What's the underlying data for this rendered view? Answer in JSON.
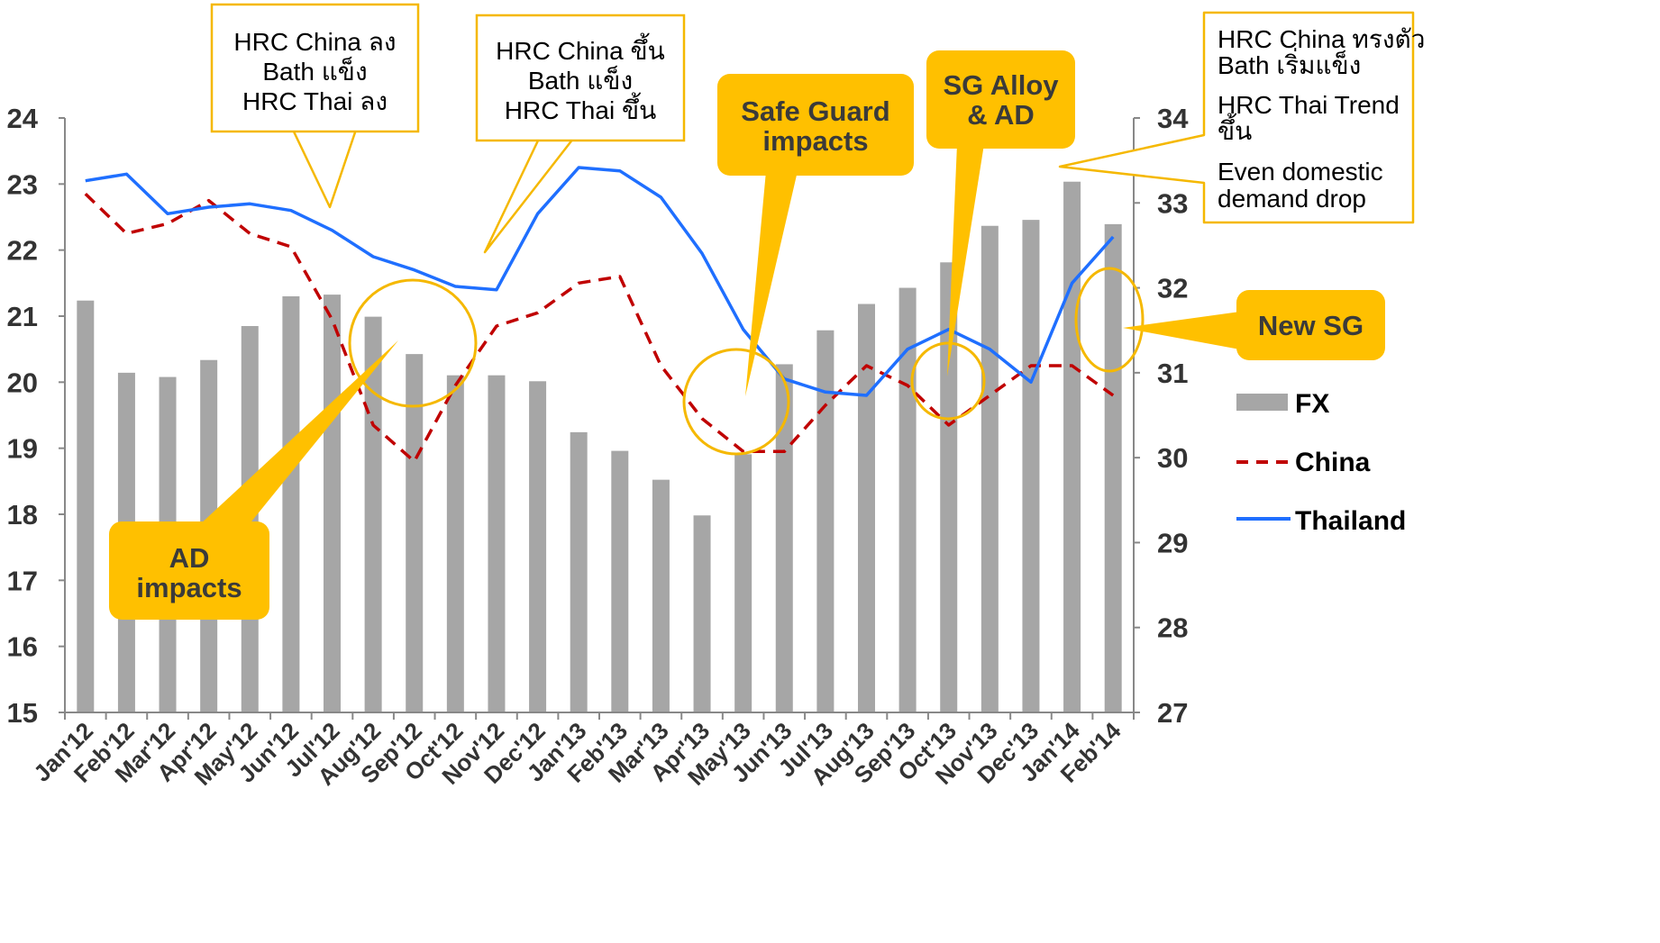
{
  "chart_data": {
    "type": "bar+line",
    "categories": [
      "Jan'12",
      "Feb'12",
      "Mar'12",
      "Apr'12",
      "May'12",
      "Jun'12",
      "Jul'12",
      "Aug'12",
      "Sep'12",
      "Oct'12",
      "Nov'12",
      "Dec'12",
      "Jan'13",
      "Feb'13",
      "Mar'13",
      "Apr'13",
      "May'13",
      "Jun'13",
      "Jul'13",
      "Aug'13",
      "Sep'13",
      "Oct'13",
      "Nov'13",
      "Dec'13",
      "Jan'14",
      "Feb'14"
    ],
    "left_axis": {
      "ylim": [
        15,
        24
      ],
      "ticks": [
        "15",
        "16",
        "17",
        "18",
        "19",
        "20",
        "21",
        "22",
        "23",
        "24"
      ]
    },
    "right_axis": {
      "ylim": [
        27,
        34
      ],
      "ticks": [
        "27",
        "28",
        "29",
        "30",
        "31",
        "32",
        "33",
        "34"
      ]
    },
    "series": [
      {
        "name": "FX",
        "kind": "bar",
        "axis": "right",
        "color": "#a6a6a6",
        "values": [
          31.85,
          31.0,
          30.95,
          31.15,
          31.55,
          31.9,
          31.92,
          31.66,
          31.22,
          30.97,
          30.97,
          30.9,
          30.3,
          30.08,
          29.74,
          29.32,
          30.04,
          31.1,
          31.5,
          31.81,
          32.0,
          32.3,
          32.73,
          32.8,
          33.25,
          32.75
        ]
      },
      {
        "name": "China",
        "kind": "dashed-line",
        "axis": "left",
        "color": "#c00000",
        "values": [
          22.85,
          22.25,
          22.4,
          22.75,
          22.25,
          22.05,
          20.95,
          19.35,
          18.8,
          19.95,
          20.85,
          21.05,
          21.5,
          21.6,
          20.25,
          19.45,
          18.95,
          18.95,
          19.65,
          20.25,
          19.95,
          19.35,
          19.8,
          20.25,
          20.25,
          19.8
        ]
      },
      {
        "name": "Thailand",
        "kind": "line",
        "axis": "left",
        "color": "#1f6fff",
        "values": [
          23.05,
          23.15,
          22.55,
          22.65,
          22.7,
          22.6,
          22.3,
          21.9,
          21.7,
          21.45,
          21.4,
          22.55,
          23.25,
          23.2,
          22.8,
          21.95,
          20.8,
          20.05,
          19.85,
          19.8,
          20.5,
          20.8,
          20.5,
          20.0,
          21.5,
          22.2
        ]
      }
    ],
    "legend": {
      "placement": "right",
      "items": [
        {
          "label": "FX",
          "style": "bar"
        },
        {
          "label": "China",
          "style": "dashed"
        },
        {
          "label": "Thailand",
          "style": "solid"
        }
      ]
    },
    "annotations": {
      "white_callouts": [
        {
          "lines": [
            "HRC China ลง",
            "Bath แข็ง",
            "HRC Thai ลง"
          ]
        },
        {
          "lines": [
            "HRC China ขึ้น",
            "Bath แข็ง",
            "HRC Thai ขึ้น"
          ]
        },
        {
          "lines": [
            "HRC China ทรงตัว",
            "Bath เริ่มแข็ง",
            "HRC Thai Trend",
            "ขึ้น",
            "Even domestic",
            "demand drop"
          ]
        }
      ],
      "gold_callouts": [
        {
          "lines": [
            "Safe Guard",
            "impacts"
          ]
        },
        {
          "lines": [
            "SG Alloy",
            "& AD"
          ]
        },
        {
          "lines": [
            "New SG"
          ]
        },
        {
          "lines": [
            "AD",
            "impacts"
          ]
        }
      ]
    }
  }
}
